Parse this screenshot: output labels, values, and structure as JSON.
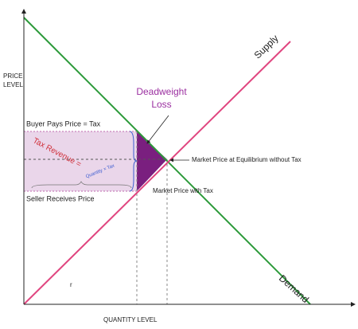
{
  "diagram": {
    "y_axis_label": [
      "PRICE",
      "LEVEL"
    ],
    "x_axis_label": "QUANTITY LEVEL",
    "supply_label": "Supply",
    "demand_label": "Demand",
    "deadweight_label": [
      "Deadweight",
      "Loss"
    ],
    "buyer_label": "Buyer Pays Price = Tax",
    "seller_label": "Seller Receives Price",
    "tax_revenue_label": "Tax Revenue =",
    "tax_formula_label": "Quantity × Tax",
    "equilibrium_label": "Market Price at Equilibrium without Tax",
    "tax_price_label": "Market Price with Tax",
    "stray_label": "r"
  }
}
